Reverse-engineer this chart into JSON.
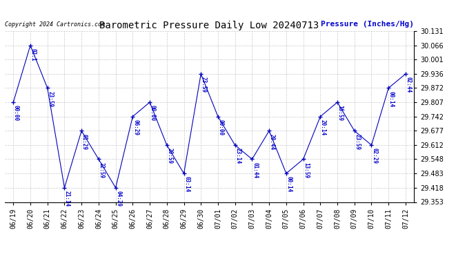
{
  "title": "Barometric Pressure Daily Low 20240713",
  "ylabel": "Pressure (Inches/Hg)",
  "copyright": "Copyright 2024 Cartronics.com",
  "background_color": "#ffffff",
  "line_color": "#0000bb",
  "text_color": "#0000cc",
  "grid_color": "#bbbbbb",
  "ylim_min": 29.353,
  "ylim_max": 30.131,
  "yticks": [
    29.353,
    29.418,
    29.483,
    29.548,
    29.612,
    29.677,
    29.742,
    29.807,
    29.872,
    29.936,
    30.001,
    30.066,
    30.131
  ],
  "x_labels": [
    "06/19",
    "06/20",
    "06/21",
    "06/22",
    "06/23",
    "06/24",
    "06/25",
    "06/26",
    "06/27",
    "06/28",
    "06/29",
    "06/30",
    "07/01",
    "07/02",
    "07/03",
    "07/04",
    "07/05",
    "07/06",
    "07/07",
    "07/08",
    "07/09",
    "07/10",
    "07/11",
    "07/12"
  ],
  "x_indices": [
    0,
    1,
    2,
    3,
    4,
    5,
    6,
    7,
    8,
    9,
    10,
    11,
    12,
    13,
    14,
    15,
    16,
    17,
    18,
    19,
    20,
    21,
    22,
    23
  ],
  "y_values": [
    29.807,
    30.066,
    29.872,
    29.418,
    29.677,
    29.548,
    29.418,
    29.742,
    29.807,
    29.612,
    29.483,
    29.936,
    29.742,
    29.612,
    29.548,
    29.677,
    29.483,
    29.548,
    29.742,
    29.807,
    29.677,
    29.612,
    29.872,
    29.936
  ],
  "point_labels": [
    "00:00",
    "02:1",
    "23:59",
    "21:14",
    "01:29",
    "22:59",
    "04:29",
    "06:29",
    "00:00",
    "20:59",
    "03:14",
    "23:59",
    "00:00",
    "23:14",
    "01:44",
    "20:44",
    "00:14",
    "13:59",
    "20:14",
    "16:59",
    "23:59",
    "02:29",
    "00:14",
    "02:44"
  ]
}
